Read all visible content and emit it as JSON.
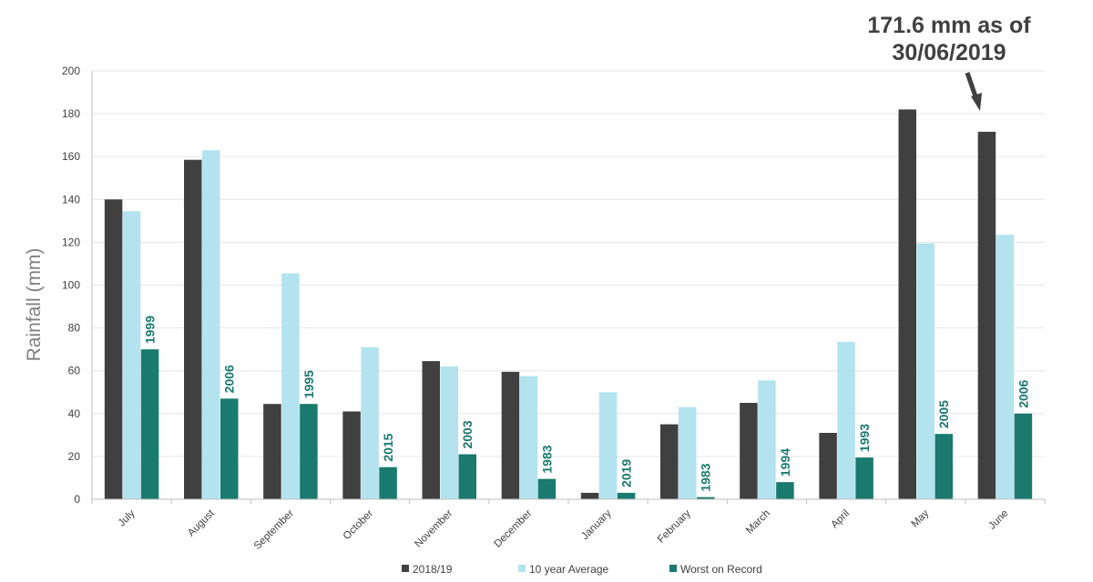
{
  "chart_data": {
    "type": "bar",
    "categories": [
      "July",
      "August",
      "September",
      "October",
      "November",
      "December",
      "January",
      "February",
      "March",
      "April",
      "May",
      "June"
    ],
    "series": [
      {
        "name": "2018/19",
        "color": "#404040",
        "values": [
          140,
          158.5,
          44.5,
          41,
          64.5,
          59.5,
          3,
          35,
          45,
          31,
          182,
          171.6
        ]
      },
      {
        "name": "10 year Average",
        "color": "#b3e3ee",
        "values": [
          134.5,
          163,
          105.5,
          71,
          62,
          57.5,
          50,
          43,
          55.5,
          73.5,
          119.5,
          123.5
        ]
      },
      {
        "name": "Worst on Record",
        "color": "#1a7a6e",
        "values": [
          70,
          47,
          44.5,
          15,
          21,
          9.5,
          3,
          1,
          8,
          19.5,
          30.5,
          40
        ],
        "year_labels": [
          "1999",
          "2006",
          "1995",
          "2015",
          "2003",
          "1983",
          "2019",
          "1983",
          "1994",
          "1993",
          "2005",
          "2006"
        ]
      }
    ],
    "ylabel": "Rainfall (mm)",
    "ylim": [
      0,
      200
    ],
    "yticks": [
      "0",
      "20",
      "40",
      "60",
      "80",
      "100",
      "120",
      "140",
      "160",
      "180",
      "200"
    ],
    "grid": true,
    "legend_position": "bottom",
    "annotation": {
      "lines": [
        "171.6 mm as of",
        "30/06/2019"
      ],
      "category": "June"
    }
  }
}
